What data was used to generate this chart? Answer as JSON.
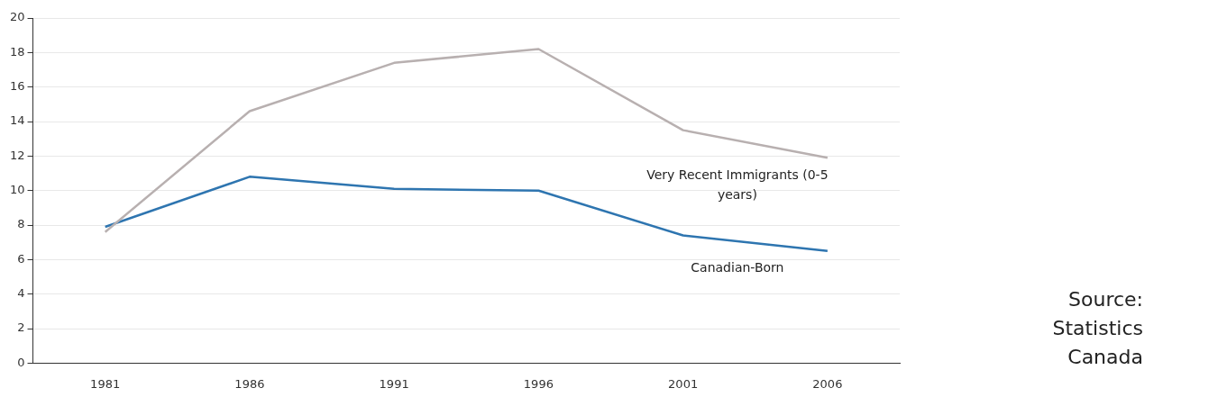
{
  "chart_data": {
    "type": "line",
    "categories": [
      "1981",
      "1986",
      "1991",
      "1996",
      "2001",
      "2006"
    ],
    "series": [
      {
        "name": "Very Recent Immigrants (0-5 years)",
        "color": "#b8b0b0",
        "values": [
          7.6,
          14.6,
          17.4,
          18.2,
          13.5,
          11.9
        ]
      },
      {
        "name": "Canadian-Born",
        "color": "#2e75b0",
        "values": [
          7.9,
          10.8,
          10.1,
          10.0,
          7.4,
          6.5
        ]
      }
    ],
    "ylim": [
      0,
      20
    ],
    "yticks": [
      0,
      2,
      4,
      6,
      8,
      10,
      12,
      14,
      16,
      18,
      20
    ],
    "grid": "y",
    "legend": false,
    "marker": "none",
    "line_style": "solid",
    "annotations": [
      "Source: Statistics Canada"
    ]
  }
}
